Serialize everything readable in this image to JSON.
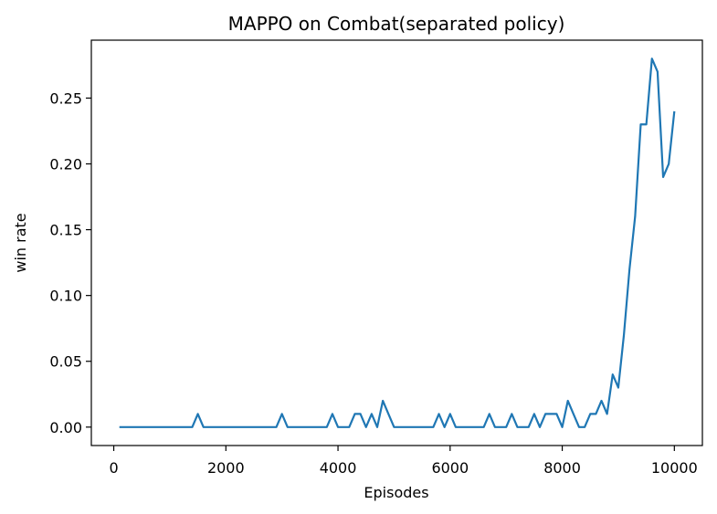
{
  "chart_data": {
    "type": "line",
    "title": "MAPPO on Combat(separated policy)",
    "xlabel": "Episodes",
    "ylabel": "win rate",
    "xlim": [
      -400,
      10500
    ],
    "ylim": [
      -0.014,
      0.294
    ],
    "xticks": [
      0,
      2000,
      4000,
      6000,
      8000,
      10000
    ],
    "xtick_labels": [
      "0",
      "2000",
      "4000",
      "6000",
      "8000",
      "10000"
    ],
    "yticks": [
      0.0,
      0.05,
      0.1,
      0.15,
      0.2,
      0.25
    ],
    "ytick_labels": [
      "0.00",
      "0.05",
      "0.10",
      "0.15",
      "0.20",
      "0.25"
    ],
    "grid": false,
    "line_color": "#1f77b4",
    "series": [
      {
        "x": [
          100,
          200,
          300,
          400,
          500,
          600,
          700,
          800,
          900,
          1000,
          1100,
          1200,
          1300,
          1400,
          1500,
          1600,
          1700,
          1800,
          1900,
          2000,
          2100,
          2200,
          2300,
          2400,
          2500,
          2600,
          2700,
          2800,
          2900,
          3000,
          3100,
          3200,
          3300,
          3400,
          3500,
          3600,
          3700,
          3800,
          3900,
          4000,
          4100,
          4200,
          4300,
          4400,
          4500,
          4600,
          4700,
          4800,
          4900,
          5000,
          5100,
          5200,
          5300,
          5400,
          5500,
          5600,
          5700,
          5800,
          5900,
          6000,
          6100,
          6200,
          6300,
          6400,
          6500,
          6600,
          6700,
          6800,
          6900,
          7000,
          7100,
          7200,
          7300,
          7400,
          7500,
          7600,
          7700,
          7800,
          7900,
          8000,
          8100,
          8200,
          8300,
          8400,
          8500,
          8600,
          8700,
          8800,
          8900,
          9000,
          9100,
          9200,
          9300,
          9400,
          9500,
          9600,
          9700,
          9800,
          9900,
          10000
        ],
        "y": [
          0,
          0,
          0,
          0,
          0,
          0,
          0,
          0,
          0,
          0,
          0,
          0,
          0,
          0,
          0.01,
          0,
          0,
          0,
          0,
          0,
          0,
          0,
          0,
          0,
          0,
          0,
          0,
          0,
          0,
          0.01,
          0,
          0,
          0,
          0,
          0,
          0,
          0,
          0,
          0.01,
          0,
          0,
          0,
          0.01,
          0.01,
          0,
          0.01,
          0,
          0.02,
          0.01,
          0,
          0,
          0,
          0,
          0,
          0,
          0,
          0,
          0.01,
          0,
          0.01,
          0,
          0,
          0,
          0,
          0,
          0,
          0.01,
          0,
          0,
          0,
          0.01,
          0,
          0,
          0,
          0.01,
          0,
          0.01,
          0.01,
          0.01,
          0,
          0.02,
          0.01,
          0,
          0,
          0.01,
          0.01,
          0.02,
          0.01,
          0.04,
          0.03,
          0.07,
          0.12,
          0.16,
          0.23,
          0.23,
          0.28,
          0.27,
          0.19,
          0.2,
          0.24
        ]
      }
    ]
  }
}
